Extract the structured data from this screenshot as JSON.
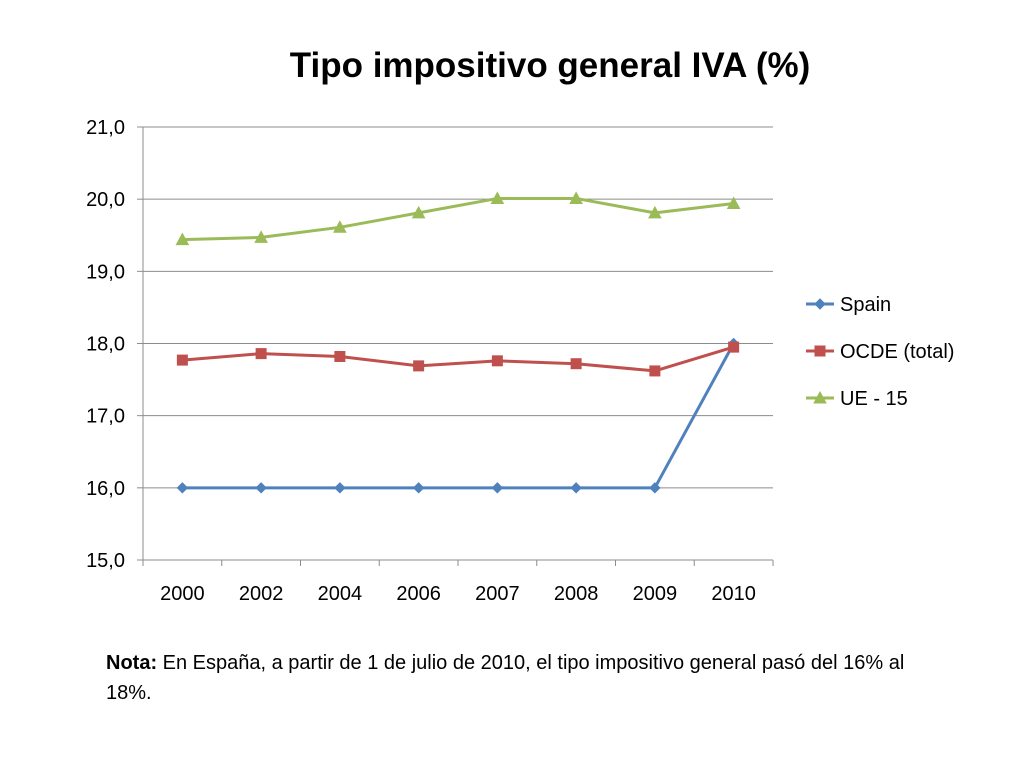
{
  "chart_data": {
    "type": "line",
    "title": "Tipo impositivo general IVA (%)",
    "xlabel": "",
    "ylabel": "",
    "categories": [
      "2000",
      "2002",
      "2004",
      "2006",
      "2007",
      "2008",
      "2009",
      "2010"
    ],
    "ylim": [
      15.0,
      21.0
    ],
    "yticks": [
      "15,0",
      "16,0",
      "17,0",
      "18,0",
      "19,0",
      "20,0",
      "21,0"
    ],
    "grid": true,
    "legend_position": "right",
    "series": [
      {
        "name": "Spain",
        "color": "#4F81BD",
        "marker": "diamond",
        "values": [
          16.0,
          16.0,
          16.0,
          16.0,
          16.0,
          16.0,
          16.0,
          18.0
        ]
      },
      {
        "name": "OCDE (total)",
        "color": "#C0504D",
        "marker": "square",
        "values": [
          17.77,
          17.86,
          17.82,
          17.69,
          17.76,
          17.72,
          17.62,
          17.95
        ]
      },
      {
        "name": "UE - 15",
        "color": "#9BBB59",
        "marker": "triangle",
        "values": [
          19.44,
          19.47,
          19.61,
          19.81,
          20.01,
          20.01,
          19.81,
          19.94
        ]
      }
    ]
  },
  "note": {
    "label": "Nota:",
    "text": " En España, a partir de 1 de julio de 2010, el tipo impositivo general pasó del 16% al 18%."
  }
}
